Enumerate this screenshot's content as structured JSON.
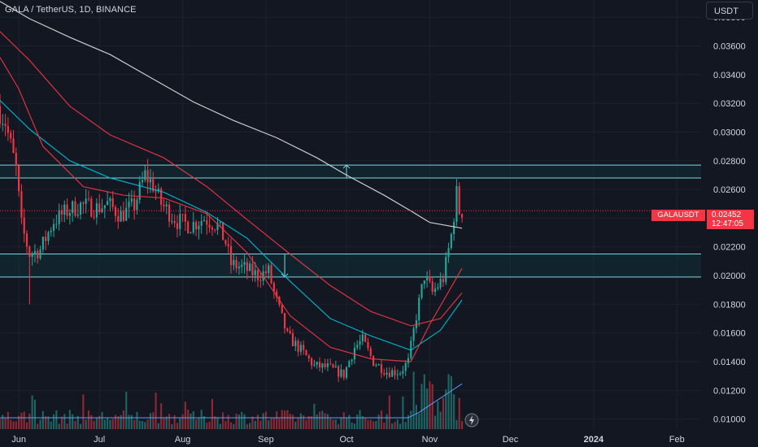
{
  "header": {
    "title": "GALA / TetherUS, 1D, BINANCE",
    "currency_button": "USDT"
  },
  "price_tag": {
    "symbol": "GALAUSDT",
    "price": "0.02452",
    "countdown": "12:47:05"
  },
  "colors": {
    "background": "#131722",
    "up": "#26a69a",
    "down": "#f23645",
    "ema_fast": "#f23645",
    "ema_mid": "#00bcd4",
    "ma_slow": "#f23645",
    "ma_long": "#e0e0e0",
    "zone_border": "#7fd6df"
  },
  "chart_data": {
    "type": "candlestick",
    "title": "GALA / TetherUS, 1D, BINANCE",
    "y_axis": {
      "ticks": [
        "0.03800",
        "0.03600",
        "0.03400",
        "0.03200",
        "0.03000",
        "0.02800",
        "0.02600",
        "0.02400",
        "0.02200",
        "0.02000",
        "0.01800",
        "0.01600",
        "0.01400",
        "0.01200",
        "0.01000"
      ],
      "range": [
        0.0093,
        0.0392
      ]
    },
    "x_axis": {
      "ticks": [
        "Jun",
        "Jul",
        "Aug",
        "Sep",
        "Oct",
        "Nov",
        "Dec",
        "2024",
        "Feb"
      ],
      "bold_ticks": [
        "2024"
      ]
    },
    "range": [
      "2023-05-25",
      "2024-02-10"
    ],
    "last_price": 0.02452,
    "zones": [
      {
        "top": 0.0277,
        "bottom": 0.0268
      },
      {
        "top": 0.0215,
        "bottom": 0.0199
      }
    ],
    "arrows": [
      {
        "date": "2023-10-01",
        "from": 0.0268,
        "to": 0.0277,
        "direction": "up"
      },
      {
        "date": "2023-09-08",
        "from": 0.0215,
        "to": 0.0199,
        "direction": "down"
      }
    ],
    "anchors": [
      [
        "2023-05-25",
        0.0318
      ],
      [
        "2023-05-28",
        0.0307
      ],
      [
        "2023-06-01",
        0.0274
      ],
      [
        "2023-06-03",
        0.0235
      ],
      [
        "2023-06-06",
        0.0215
      ],
      [
        "2023-06-10",
        0.0218
      ],
      [
        "2023-06-15",
        0.0238
      ],
      [
        "2023-06-20",
        0.0245
      ],
      [
        "2023-06-25",
        0.0249
      ],
      [
        "2023-07-01",
        0.0247
      ],
      [
        "2023-07-05",
        0.025
      ],
      [
        "2023-07-10",
        0.0242
      ],
      [
        "2023-07-15",
        0.0249
      ],
      [
        "2023-07-19",
        0.027
      ],
      [
        "2023-07-22",
        0.0263
      ],
      [
        "2023-07-25",
        0.025
      ],
      [
        "2023-07-31",
        0.0238
      ],
      [
        "2023-08-05",
        0.0235
      ],
      [
        "2023-08-10",
        0.024
      ],
      [
        "2023-08-15",
        0.0235
      ],
      [
        "2023-08-18",
        0.0223
      ],
      [
        "2023-08-20",
        0.0208
      ],
      [
        "2023-08-25",
        0.0205
      ],
      [
        "2023-08-30",
        0.02
      ],
      [
        "2023-09-03",
        0.0203
      ],
      [
        "2023-09-05",
        0.0188
      ],
      [
        "2023-09-10",
        0.0158
      ],
      [
        "2023-09-15",
        0.0148
      ],
      [
        "2023-09-20",
        0.0137
      ],
      [
        "2023-09-25",
        0.0136
      ],
      [
        "2023-10-01",
        0.0131
      ],
      [
        "2023-10-05",
        0.015
      ],
      [
        "2023-10-08",
        0.0155
      ],
      [
        "2023-10-12",
        0.014
      ],
      [
        "2023-10-17",
        0.0133
      ],
      [
        "2023-10-22",
        0.0133
      ],
      [
        "2023-10-25",
        0.014
      ],
      [
        "2023-10-28",
        0.0172
      ],
      [
        "2023-10-31",
        0.02
      ],
      [
        "2023-11-03",
        0.0188
      ],
      [
        "2023-11-07",
        0.0198
      ],
      [
        "2023-11-10",
        0.0228
      ],
      [
        "2023-11-12",
        0.0257
      ],
      [
        "2023-11-13",
        0.0245
      ]
    ],
    "series": [
      {
        "type": "line",
        "color": "#e0e0e0",
        "points": [
          [
            "2023-05-25",
            0.0391
          ],
          [
            "2023-06-05",
            0.0379
          ],
          [
            "2023-06-20",
            0.0366
          ],
          [
            "2023-07-05",
            0.0354
          ],
          [
            "2023-07-20",
            0.0338
          ],
          [
            "2023-08-05",
            0.0321
          ],
          [
            "2023-08-20",
            0.0308
          ],
          [
            "2023-09-05",
            0.0296
          ],
          [
            "2023-09-20",
            0.0282
          ],
          [
            "2023-10-01",
            0.027
          ],
          [
            "2023-10-15",
            0.0256
          ],
          [
            "2023-10-25",
            0.0245
          ],
          [
            "2023-11-01",
            0.0237
          ],
          [
            "2023-11-13",
            0.0233
          ]
        ]
      },
      {
        "type": "line",
        "color": "#f23645",
        "points": [
          [
            "2023-05-25",
            0.037
          ],
          [
            "2023-06-05",
            0.035
          ],
          [
            "2023-06-20",
            0.0318
          ],
          [
            "2023-07-05",
            0.0298
          ],
          [
            "2023-07-25",
            0.0282
          ],
          [
            "2023-08-10",
            0.0262
          ],
          [
            "2023-08-25",
            0.0239
          ],
          [
            "2023-09-10",
            0.0215
          ],
          [
            "2023-09-25",
            0.0193
          ],
          [
            "2023-10-10",
            0.0175
          ],
          [
            "2023-10-25",
            0.0165
          ],
          [
            "2023-11-05",
            0.017
          ],
          [
            "2023-11-13",
            0.0188
          ]
        ]
      },
      {
        "type": "line",
        "color": "#00bcd4",
        "points": [
          [
            "2023-05-25",
            0.0322
          ],
          [
            "2023-06-05",
            0.0302
          ],
          [
            "2023-06-20",
            0.028
          ],
          [
            "2023-07-05",
            0.0268
          ],
          [
            "2023-07-25",
            0.0258
          ],
          [
            "2023-08-10",
            0.0244
          ],
          [
            "2023-08-25",
            0.0226
          ],
          [
            "2023-09-10",
            0.0196
          ],
          [
            "2023-09-25",
            0.017
          ],
          [
            "2023-10-10",
            0.0158
          ],
          [
            "2023-10-25",
            0.0148
          ],
          [
            "2023-11-05",
            0.0162
          ],
          [
            "2023-11-13",
            0.0183
          ]
        ]
      },
      {
        "type": "line",
        "color": "#f23645",
        "points": [
          [
            "2023-05-25",
            0.0352
          ],
          [
            "2023-06-01",
            0.033
          ],
          [
            "2023-06-10",
            0.029
          ],
          [
            "2023-06-25",
            0.0262
          ],
          [
            "2023-07-10",
            0.0256
          ],
          [
            "2023-07-25",
            0.0254
          ],
          [
            "2023-08-10",
            0.0243
          ],
          [
            "2023-08-25",
            0.0216
          ],
          [
            "2023-09-10",
            0.0172
          ],
          [
            "2023-09-25",
            0.015
          ],
          [
            "2023-10-10",
            0.0142
          ],
          [
            "2023-10-25",
            0.014
          ],
          [
            "2023-11-01",
            0.0166
          ],
          [
            "2023-11-13",
            0.0205
          ]
        ]
      }
    ],
    "volume": {
      "scale": "relative"
    }
  }
}
